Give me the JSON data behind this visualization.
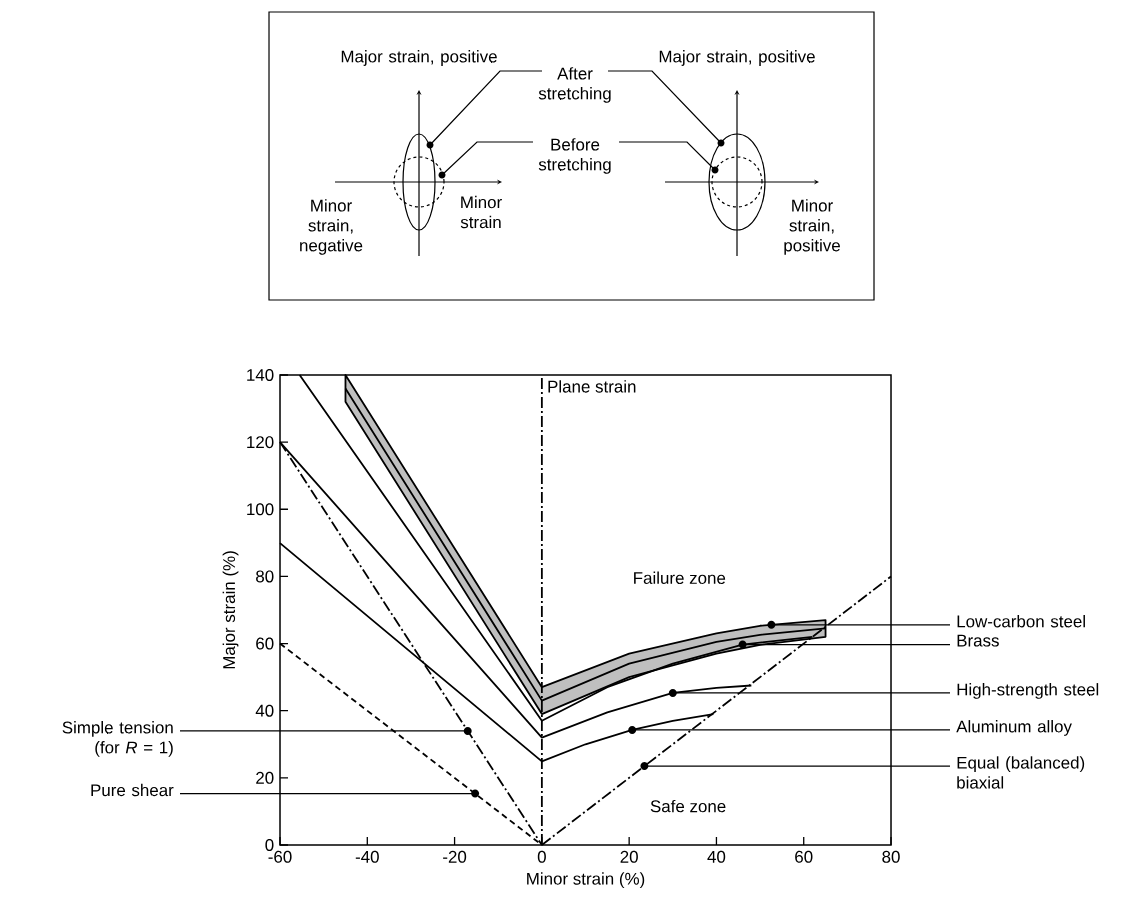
{
  "chart_data": {
    "type": "line",
    "xlabel": "Minor strain (%)",
    "ylabel": "Major strain (%)",
    "xlim": [
      -60,
      80
    ],
    "ylim": [
      0,
      140
    ],
    "xticks": [
      -60,
      -40,
      -20,
      0,
      20,
      40,
      60,
      80
    ],
    "yticks": [
      0,
      20,
      40,
      60,
      80,
      100,
      120,
      140
    ],
    "marker": "none",
    "series": [
      {
        "color": "#000000",
        "line_style": "dashed",
        "x": [
          -60,
          0
        ],
        "values": [
          60,
          0
        ]
      },
      {
        "color": "#000000",
        "line_style": "dashdot",
        "x": [
          -60,
          0
        ],
        "values": [
          120,
          0
        ]
      },
      {
        "color": "#000000",
        "line_style": "dashdot",
        "x": [
          0,
          80
        ],
        "values": [
          0,
          80
        ]
      },
      {
        "color": "#000000",
        "line_style": "solid",
        "x": [
          -60,
          0,
          10,
          20.7,
          30,
          39.3
        ],
        "values": [
          89.9,
          24.9,
          30,
          34.3,
          37,
          39
        ]
      },
      {
        "color": "#000000",
        "line_style": "solid",
        "x": [
          -60,
          0,
          15,
          30,
          40,
          48
        ],
        "values": [
          120,
          32,
          39.5,
          45.3,
          46.8,
          47.5
        ]
      },
      {
        "color": "#000000",
        "line_style": "solid",
        "x": [
          -55.5,
          0,
          15,
          30,
          46,
          62
        ],
        "values": [
          140,
          37,
          47,
          54,
          59.7,
          62
        ]
      },
      {
        "color": "#000000",
        "line_style": "solid",
        "x": [
          -45,
          0,
          20,
          40,
          50,
          65
        ],
        "values": [
          136,
          43,
          54,
          60.5,
          62.6,
          64.5
        ],
        "lower": [
          132,
          39,
          50,
          57,
          59.6,
          62
        ],
        "upper": [
          140,
          47,
          57,
          63,
          65.3,
          67
        ]
      }
    ],
    "ref_lines": [
      {
        "axis": "x",
        "value": 0,
        "label": "Plane strain",
        "line_style": "dashdot",
        "color": "#000000"
      }
    ],
    "annotations": [
      {
        "text": "Low-carbon steel",
        "x": 52.6,
        "y": 65.6
      },
      {
        "text": "Brass",
        "x": 46,
        "y": 59.7
      },
      {
        "text": "High-strength steel",
        "x": 30,
        "y": 45.3
      },
      {
        "text": "Aluminum alloy",
        "x": 20.7,
        "y": 34.3
      },
      {
        "text": "Equal (balanced) biaxial",
        "x": 23.5,
        "y": 23.5
      },
      {
        "text": "Simple tension (for *R* = 1)",
        "x": -17,
        "y": 34
      },
      {
        "text": "Pure shear",
        "x": -15.3,
        "y": 15.3
      },
      "Failure zone",
      "Safe zone",
      "Major strain, positive",
      "After stretching",
      "Before stretching",
      "Major strain, positive",
      "Minor strain, negative",
      "Minor strain",
      "Minor strain, positive"
    ]
  }
}
